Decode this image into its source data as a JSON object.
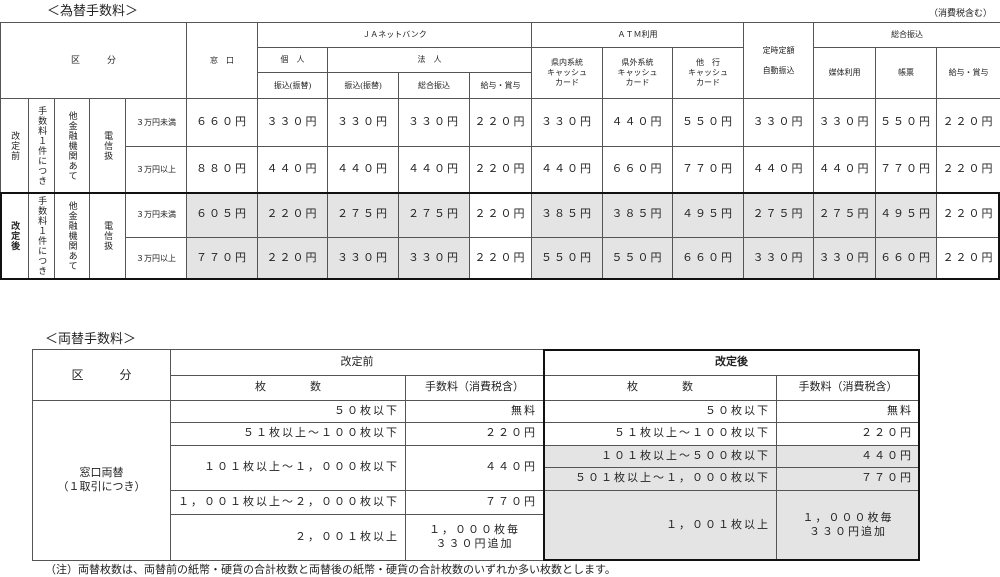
{
  "exchange": {
    "title": "＜為替手数料＞",
    "tax_note": "（消費税含む）",
    "headers": {
      "category": "区　　　分",
      "counter": "窓　口",
      "ja_netbank": "ＪＡネットバンク",
      "individual": "個　人",
      "corporate": "法　人",
      "transfer1": "振込(振替)",
      "transfer2": "振込(振替)",
      "general_transfer": "総合振込",
      "salary1": "給与・賞与",
      "atm": "ＡＴＭ利用",
      "atm_in": "県内系統\nキャッシュ\nカード",
      "atm_out": "県外系統\nキャッシュ\nカード",
      "atm_other": "他　行\nキャッシュ\nカード",
      "fixed": "定時定額\n\n自動振込",
      "sogo": "総合振込",
      "media": "媒体利用",
      "slip": "帳票",
      "salary2": "給与・賞与"
    },
    "side": {
      "per_item": "手数料１件につき",
      "other_bank": "他金融機関あて",
      "wire": "電信扱"
    },
    "before": {
      "label": "改定前",
      "rows": [
        {
          "range": "３万円未満",
          "values": [
            "６６０円",
            "３３０円",
            "３３０円",
            "３３０円",
            "２２０円",
            "３３０円",
            "４４０円",
            "５５０円",
            "３３０円",
            "３３０円",
            "５５０円",
            "２２０円"
          ]
        },
        {
          "range": "３万円以上",
          "values": [
            "８８０円",
            "４４０円",
            "４４０円",
            "４４０円",
            "２２０円",
            "４４０円",
            "６６０円",
            "７７０円",
            "４４０円",
            "４４０円",
            "７７０円",
            "２２０円"
          ]
        }
      ]
    },
    "after": {
      "label": "改定後",
      "rows": [
        {
          "range": "３万円未満",
          "values": [
            "６０５円",
            "２２０円",
            "２７５円",
            "２７５円",
            "２２０円",
            "３８５円",
            "３８５円",
            "４９５円",
            "２７５円",
            "２７５円",
            "４９５円",
            "２２０円"
          ]
        },
        {
          "range": "３万円以上",
          "values": [
            "７７０円",
            "２２０円",
            "３３０円",
            "３３０円",
            "２２０円",
            "５５０円",
            "５５０円",
            "６６０円",
            "３３０円",
            "３３０円",
            "６６０円",
            "２２０円"
          ]
        }
      ]
    }
  },
  "money_exchange": {
    "title": "＜両替手数料＞",
    "headers": {
      "category": "区　　　分",
      "before": "改定前",
      "after": "改定後",
      "count": "枚　　　　数",
      "fee": "手数料（消費税含）"
    },
    "row_label": "窓口両替\n（１取引につき）",
    "before": [
      {
        "count": "５０枚以下",
        "fee": "無料"
      },
      {
        "count": "５１枚以上～１００枚以下",
        "fee": "２２０円"
      },
      {
        "count": "１０１枚以上～１，０００枚以下",
        "fee": "４４０円"
      },
      {
        "count": "１，００１枚以上～２，０００枚以下",
        "fee": "７７０円"
      },
      {
        "count": "２，００１枚以上",
        "fee": "１，０００枚毎\n３３０円追加"
      }
    ],
    "after": [
      {
        "count": "５０枚以下",
        "fee": "無料"
      },
      {
        "count": "５１枚以上～１００枚以下",
        "fee": "２２０円"
      },
      {
        "count": "１０１枚以上～５００枚以下",
        "fee": "４４０円"
      },
      {
        "count": "５０１枚以上～１，０００枚以下",
        "fee": "７７０円"
      },
      {
        "count": "１，００１枚以上",
        "fee": "１，０００枚毎\n３３０円追加"
      }
    ],
    "note": "（注）両替枚数は、両替前の紙幣・硬貨の合計枚数と両替後の紙幣・硬貨の合計枚数のいずれか多い枚数とします。"
  }
}
